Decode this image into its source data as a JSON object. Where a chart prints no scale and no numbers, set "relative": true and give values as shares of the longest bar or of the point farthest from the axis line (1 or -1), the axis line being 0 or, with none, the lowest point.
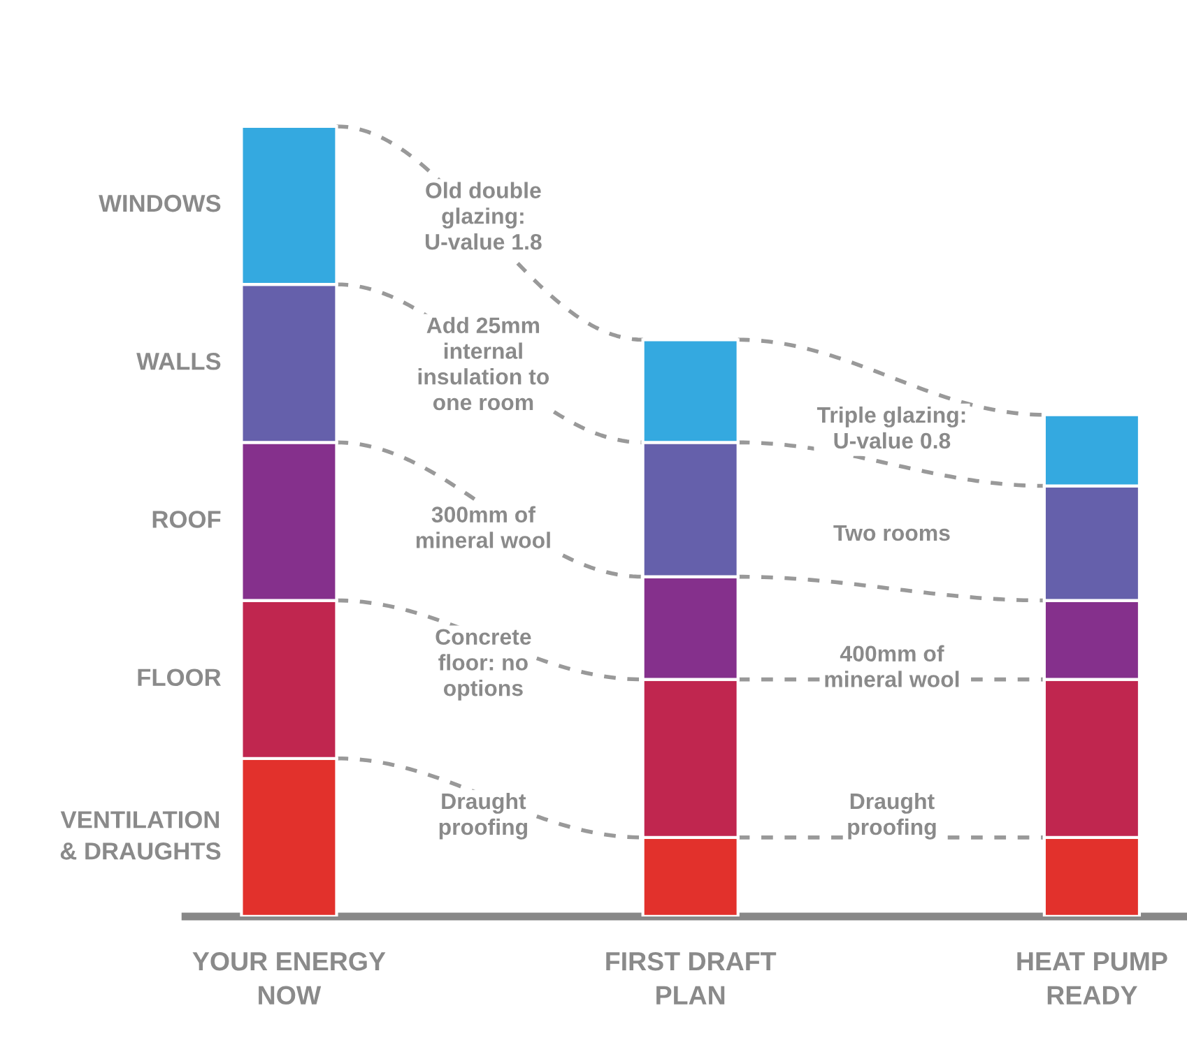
{
  "chart_data": {
    "type": "bar",
    "stacked": true,
    "relative": true,
    "categories": [
      "YOUR ENERGY NOW",
      "FIRST DRAFT PLAN",
      "HEAT PUMP READY"
    ],
    "series": [
      {
        "name": "VENTILATION & DRAUGHTS",
        "color": "#e2312c",
        "values": [
          0.2,
          0.1,
          0.1
        ]
      },
      {
        "name": "FLOOR",
        "color": "#c0264f",
        "values": [
          0.2,
          0.2,
          0.2
        ]
      },
      {
        "name": "ROOF",
        "color": "#85308c",
        "values": [
          0.2,
          0.13,
          0.1
        ]
      },
      {
        "name": "WALLS",
        "color": "#6560ab",
        "values": [
          0.2,
          0.17,
          0.145
        ]
      },
      {
        "name": "WINDOWS",
        "color": "#34a9e0",
        "values": [
          0.2,
          0.13,
          0.09
        ]
      }
    ],
    "annotations": [
      "Old double glazing: U-value 1.8",
      "Add 25mm internal insulation to one room",
      "300mm of mineral wool",
      "Concrete floor: no options",
      "Draught proofing",
      "Triple glazing: U-value 0.8",
      "Two rooms",
      "400mm of mineral wool",
      "Draught proofing"
    ],
    "legend": false,
    "grid": false
  }
}
